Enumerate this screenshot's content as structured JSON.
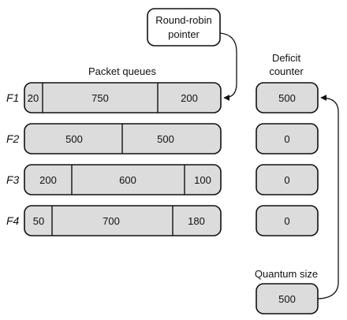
{
  "pointer_label": [
    "Round-robin",
    "pointer"
  ],
  "packet_queues_label": "Packet queues",
  "deficit_label": [
    "Deficit",
    "counter"
  ],
  "quantum": {
    "label": "Quantum size",
    "value": "500"
  },
  "flows": [
    {
      "name": "F1",
      "packets": [
        "20",
        "750",
        "200"
      ],
      "deficit": "500"
    },
    {
      "name": "F2",
      "packets": [
        "500",
        "500"
      ],
      "deficit": "0"
    },
    {
      "name": "F3",
      "packets": [
        "200",
        "600",
        "100"
      ],
      "deficit": "0"
    },
    {
      "name": "F4",
      "packets": [
        "50",
        "700",
        "180"
      ],
      "deficit": "0"
    }
  ]
}
